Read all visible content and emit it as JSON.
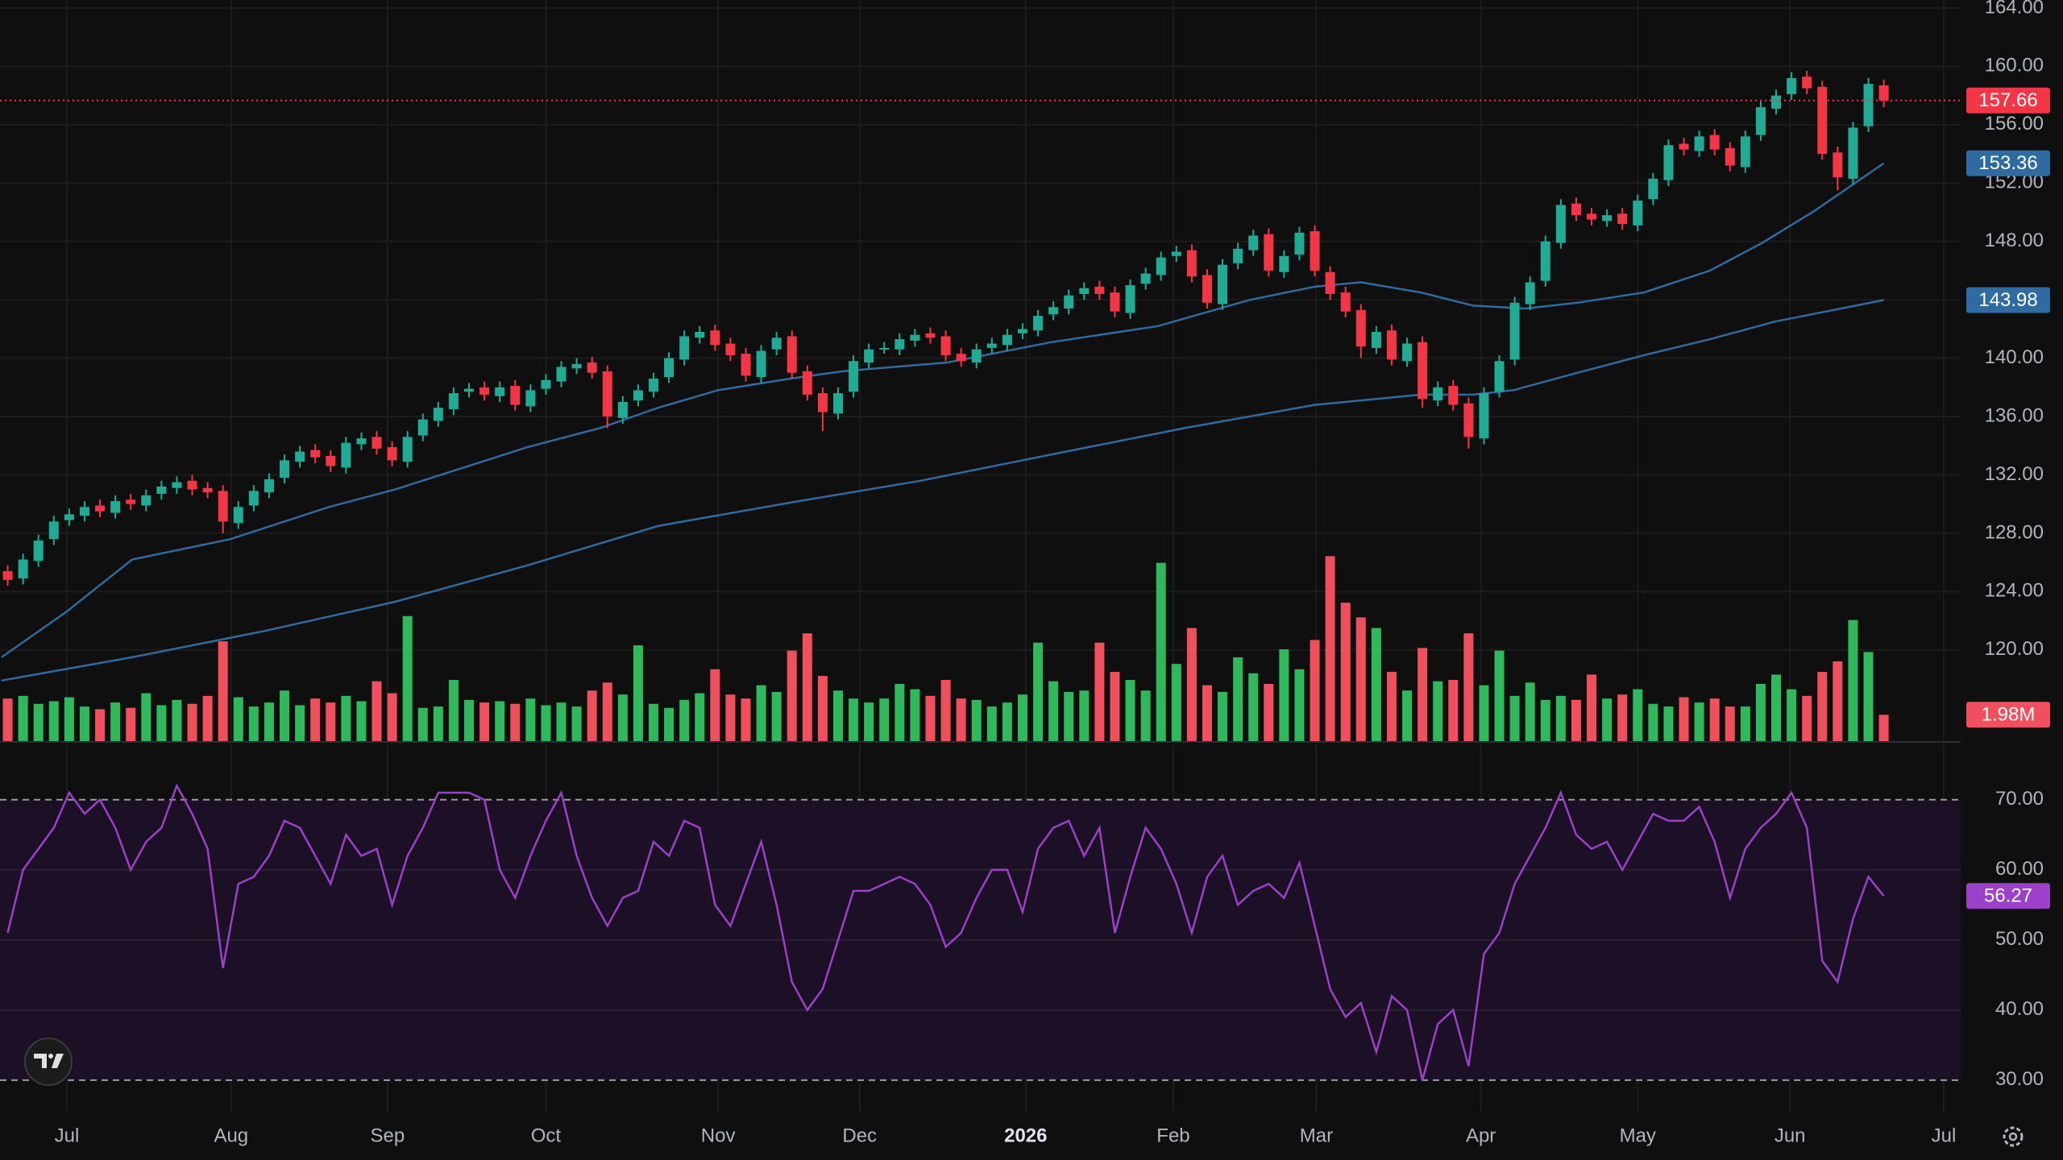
{
  "chart_data": {
    "type": "candlestick",
    "xlim": [
      -0.5,
      127
    ],
    "xticks": [
      {
        "value": 3.85,
        "label": "Jul"
      },
      {
        "value": 14.53,
        "label": "Aug"
      },
      {
        "value": 24.7,
        "label": "Sep"
      },
      {
        "value": 35.0,
        "label": "Oct"
      },
      {
        "value": 46.2,
        "label": "Nov"
      },
      {
        "value": 55.4,
        "label": "Dec"
      },
      {
        "value": 66.2,
        "label": "2026"
      },
      {
        "value": 75.8,
        "label": "Feb"
      },
      {
        "value": 85.1,
        "label": "Mar"
      },
      {
        "value": 95.8,
        "label": "Apr"
      },
      {
        "value": 106.0,
        "label": "May"
      },
      {
        "value": 115.9,
        "label": "Jun"
      },
      {
        "value": 125.9,
        "label": "Jul"
      }
    ],
    "ylim": [
      113.75,
      164.55
    ],
    "yticks": [
      {
        "value": 120,
        "label": "120.00"
      },
      {
        "value": 124,
        "label": "124.00"
      },
      {
        "value": 128,
        "label": "128.00"
      },
      {
        "value": 132,
        "label": "132.00"
      },
      {
        "value": 136,
        "label": "136.00"
      },
      {
        "value": 140,
        "label": "140.00"
      },
      {
        "value": 144,
        "label": "144.00"
      },
      {
        "value": 148,
        "label": "148.00"
      },
      {
        "value": 152,
        "label": "152.00"
      },
      {
        "value": 156,
        "label": "156.00"
      },
      {
        "value": 160,
        "label": "160.00"
      },
      {
        "value": 164,
        "label": "164.00"
      }
    ],
    "grid": true,
    "up_color": "#22ab94",
    "down_color": "#f23645",
    "open": [
      125.4,
      124.9,
      126.1,
      127.6,
      128.9,
      129.2,
      129.9,
      129.4,
      130.3,
      129.9,
      130.7,
      131.1,
      131.6,
      131.1,
      130.9,
      128.7,
      129.9,
      130.8,
      131.8,
      132.9,
      133.7,
      133.3,
      132.5,
      134.1,
      134.6,
      133.9,
      132.9,
      134.7,
      135.7,
      136.5,
      137.7,
      138.0,
      137.4,
      138.1,
      136.7,
      137.9,
      138.4,
      139.3,
      139.7,
      139.1,
      135.9,
      137.1,
      137.7,
      138.7,
      139.9,
      141.4,
      141.9,
      141.0,
      140.3,
      138.7,
      140.6,
      141.5,
      139.1,
      137.6,
      136.2,
      137.7,
      139.7,
      140.7,
      140.6,
      141.2,
      141.7,
      141.5,
      140.3,
      139.7,
      140.7,
      140.9,
      141.7,
      141.9,
      143.0,
      143.4,
      144.4,
      144.9,
      144.5,
      143.1,
      145.1,
      145.7,
      147.0,
      147.4,
      145.7,
      143.7,
      146.5,
      147.4,
      148.5,
      145.9,
      147.1,
      148.7,
      145.9,
      144.5,
      143.3,
      140.7,
      141.9,
      139.8,
      141.1,
      137.1,
      138.1,
      136.9,
      134.5,
      137.7,
      139.9,
      143.7,
      145.3,
      147.9,
      150.6,
      149.9,
      149.4,
      149.9,
      149.1,
      150.9,
      152.2,
      154.7,
      154.2,
      155.3,
      154.4,
      153.1,
      155.3,
      157.1,
      158.1,
      159.3,
      158.6,
      154.1,
      152.3,
      155.9,
      158.7
    ],
    "high": [
      125.8,
      126.6,
      127.9,
      129.2,
      129.7,
      130.2,
      130.3,
      130.6,
      130.7,
      131.0,
      131.6,
      131.9,
      132.0,
      131.5,
      131.3,
      130.2,
      131.3,
      132.1,
      133.4,
      134.0,
      134.1,
      133.7,
      134.6,
      134.9,
      135.0,
      134.3,
      135.0,
      136.2,
      137.0,
      138.0,
      138.3,
      138.4,
      138.4,
      138.5,
      138.2,
      138.9,
      139.8,
      140.0,
      140.1,
      139.5,
      137.4,
      138.2,
      139.0,
      140.4,
      141.9,
      142.2,
      142.3,
      141.4,
      140.7,
      140.9,
      141.8,
      141.9,
      139.5,
      138.0,
      138.0,
      140.2,
      141.0,
      141.1,
      141.7,
      142.0,
      142.1,
      141.9,
      140.7,
      141.0,
      141.4,
      142.0,
      142.4,
      143.3,
      143.9,
      144.7,
      145.2,
      145.3,
      144.9,
      145.4,
      146.2,
      147.3,
      147.7,
      147.8,
      146.1,
      146.8,
      147.9,
      148.8,
      148.9,
      147.4,
      149.0,
      149.1,
      146.3,
      144.9,
      143.7,
      142.2,
      142.3,
      141.4,
      141.5,
      138.4,
      138.5,
      137.3,
      138.0,
      140.2,
      144.2,
      145.6,
      148.4,
      150.9,
      151.0,
      150.3,
      150.2,
      150.3,
      151.2,
      152.7,
      155.0,
      155.1,
      155.6,
      155.7,
      154.8,
      155.6,
      157.6,
      158.4,
      159.6,
      159.7,
      159.0,
      154.5,
      156.2,
      159.2,
      159.1
    ],
    "low": [
      124.4,
      124.5,
      125.7,
      127.2,
      128.5,
      128.8,
      129.1,
      129.0,
      129.6,
      129.5,
      130.3,
      130.7,
      130.6,
      130.4,
      128.0,
      128.3,
      129.5,
      130.4,
      131.4,
      132.5,
      132.8,
      132.2,
      132.1,
      133.7,
      133.4,
      132.6,
      132.5,
      134.3,
      135.3,
      136.1,
      137.3,
      137.1,
      137.0,
      136.4,
      136.3,
      137.5,
      138.0,
      138.9,
      138.6,
      135.2,
      135.5,
      136.7,
      137.3,
      138.3,
      139.5,
      141.0,
      140.5,
      139.8,
      138.4,
      138.3,
      140.2,
      138.6,
      137.1,
      135.0,
      135.8,
      137.3,
      139.3,
      140.3,
      140.2,
      140.8,
      141.0,
      139.8,
      139.4,
      139.3,
      140.3,
      140.5,
      141.3,
      141.5,
      142.6,
      143.0,
      144.0,
      144.0,
      142.8,
      142.7,
      144.7,
      145.3,
      146.6,
      145.2,
      143.4,
      143.3,
      146.1,
      147.0,
      145.6,
      145.5,
      146.7,
      145.6,
      144.0,
      142.8,
      140.0,
      140.3,
      139.5,
      139.4,
      136.6,
      136.7,
      136.4,
      133.8,
      134.1,
      137.3,
      139.5,
      143.3,
      144.9,
      147.5,
      149.4,
      149.1,
      149.0,
      148.8,
      148.7,
      150.5,
      151.8,
      153.9,
      153.8,
      153.9,
      152.8,
      152.7,
      154.9,
      156.7,
      157.7,
      158.1,
      153.6,
      151.5,
      151.9,
      155.5,
      157.2
    ],
    "close": [
      124.8,
      126.2,
      127.5,
      128.8,
      129.3,
      129.8,
      129.5,
      130.2,
      130.0,
      130.6,
      131.2,
      131.5,
      131.0,
      130.8,
      128.8,
      129.8,
      130.9,
      131.7,
      133.0,
      133.6,
      133.2,
      132.6,
      134.2,
      134.5,
      133.8,
      133.0,
      134.6,
      135.8,
      136.6,
      137.6,
      137.9,
      137.5,
      138.0,
      136.8,
      137.8,
      138.5,
      139.4,
      139.6,
      139.0,
      136.0,
      137.0,
      137.8,
      138.6,
      140.0,
      141.5,
      141.8,
      140.9,
      140.2,
      138.8,
      140.5,
      141.4,
      139.0,
      137.5,
      136.3,
      137.6,
      139.8,
      140.6,
      140.7,
      141.3,
      141.6,
      141.4,
      140.2,
      139.8,
      140.6,
      141.0,
      141.6,
      142.0,
      142.9,
      143.5,
      144.3,
      144.8,
      144.4,
      143.2,
      145.0,
      145.8,
      146.9,
      147.3,
      145.6,
      143.8,
      146.4,
      147.5,
      148.4,
      146.0,
      147.0,
      148.6,
      146.0,
      144.4,
      143.2,
      140.8,
      141.8,
      139.9,
      141.0,
      137.2,
      138.0,
      136.8,
      134.6,
      137.6,
      139.8,
      143.8,
      145.2,
      148.0,
      150.5,
      149.8,
      149.5,
      149.8,
      149.2,
      150.8,
      152.3,
      154.6,
      154.3,
      155.2,
      154.3,
      153.2,
      155.2,
      157.2,
      158.0,
      159.2,
      158.5,
      154.0,
      152.4,
      155.8,
      158.8,
      157.66
    ],
    "moving_averages": [
      {
        "color": "#2f6aa0",
        "x": [
          -0.4,
          3.8,
          8.1,
          14.5,
          20.9,
          25.2,
          33.8,
          38.5,
          42.3,
          46.2,
          50.9,
          54.3,
          61.1,
          67.9,
          74.8,
          80.8,
          85.0,
          88.0,
          91.9,
          95.3,
          98.7,
          102.1,
          106.4,
          110.7,
          114.1,
          117.5,
          122
        ],
        "values": [
          119.5,
          122.6,
          126.2,
          127.6,
          129.8,
          131.0,
          133.9,
          135.2,
          136.6,
          137.8,
          138.6,
          139.1,
          139.7,
          141.1,
          142.2,
          144.0,
          144.9,
          145.2,
          144.5,
          143.6,
          143.4,
          143.8,
          144.5,
          146.0,
          147.9,
          150.1,
          153.36
        ]
      },
      {
        "color": "#2f6aa0",
        "x": [
          -0.4,
          8.1,
          16.7,
          25.2,
          33.8,
          42.3,
          50.9,
          59.4,
          67.9,
          76.5,
          85.0,
          91.9,
          95.3,
          97.9,
          102.1,
          106.4,
          110.7,
          114.9,
          122
        ],
        "values": [
          117.9,
          119.5,
          121.3,
          123.3,
          125.8,
          128.5,
          130.1,
          131.6,
          133.4,
          135.2,
          136.8,
          137.5,
          137.5,
          137.8,
          139.0,
          140.2,
          141.3,
          142.5,
          143.98
        ]
      }
    ],
    "volume": {
      "up_color": "#2fb85c",
      "down_color": "#f0505d",
      "ylim": [
        0,
        55.7
      ],
      "values": [
        3.2,
        3.4,
        2.8,
        3.0,
        3.3,
        2.6,
        2.4,
        2.9,
        2.5,
        3.6,
        2.7,
        3.1,
        2.8,
        3.4,
        7.5,
        3.3,
        2.6,
        2.9,
        3.8,
        2.7,
        3.2,
        2.9,
        3.4,
        3.0,
        4.5,
        3.6,
        9.4,
        2.5,
        2.6,
        4.6,
        3.1,
        2.9,
        3.0,
        2.8,
        3.2,
        2.7,
        2.9,
        2.6,
        3.8,
        4.4,
        3.5,
        7.2,
        2.8,
        2.5,
        3.1,
        3.6,
        5.4,
        3.5,
        3.2,
        4.2,
        3.7,
        6.8,
        8.1,
        4.9,
        3.8,
        3.2,
        2.9,
        3.2,
        4.3,
        3.9,
        3.4,
        4.6,
        3.2,
        3.1,
        2.6,
        2.9,
        3.5,
        7.4,
        4.5,
        3.7,
        3.8,
        7.4,
        5.2,
        4.6,
        3.8,
        13.4,
        5.8,
        8.5,
        4.2,
        3.7,
        6.3,
        5.1,
        4.3,
        6.9,
        5.4,
        7.6,
        13.9,
        10.4,
        9.3,
        8.5,
        5.2,
        3.8,
        7.0,
        4.5,
        4.6,
        8.1,
        4.2,
        6.8,
        3.4,
        4.4,
        3.1,
        3.4,
        3.1,
        5.0,
        3.2,
        3.5,
        3.9,
        2.8,
        2.6,
        3.3,
        2.9,
        3.2,
        2.6,
        2.6,
        4.3,
        5.0,
        3.9,
        3.4,
        5.2,
        6.0,
        9.1,
        6.7,
        1.98
      ],
      "value_labels": {
        "122": "1.98M"
      }
    },
    "rsi": {
      "color": "#9c3fc9",
      "band_color": "#1c1026",
      "band": [
        30,
        70
      ],
      "ylim": [
        25.5,
        77.9
      ],
      "yticks": [
        {
          "value": 30,
          "label": "30.00"
        },
        {
          "value": 40,
          "label": "40.00"
        },
        {
          "value": 50,
          "label": "50.00"
        },
        {
          "value": 60,
          "label": "60.00"
        },
        {
          "value": 70,
          "label": "70.00"
        }
      ],
      "values": [
        51,
        60,
        63,
        66,
        71,
        68,
        70,
        66,
        60,
        64,
        66,
        72,
        68,
        63,
        46,
        58,
        59,
        62,
        67,
        66,
        62,
        58,
        65,
        62,
        63,
        55,
        62,
        66,
        71,
        71,
        71,
        70,
        60,
        56,
        62,
        67,
        71,
        62,
        56,
        52,
        56,
        57,
        64,
        62,
        67,
        66,
        55,
        52,
        58,
        64,
        55,
        44,
        40,
        43,
        50,
        57,
        57,
        58,
        59,
        58,
        55,
        49,
        51,
        56,
        60,
        60,
        54,
        63,
        66,
        67,
        62,
        66,
        51,
        59,
        66,
        63,
        58,
        51,
        59,
        62,
        55,
        57,
        58,
        56,
        61,
        52,
        43,
        39,
        41,
        34,
        42,
        40,
        30,
        38,
        40,
        32,
        48,
        51,
        58,
        62,
        66,
        71,
        65,
        63,
        64,
        60,
        64,
        68,
        67,
        67,
        69,
        64,
        56,
        63,
        66,
        68,
        71,
        66,
        47,
        44,
        53,
        59,
        56.27
      ]
    }
  }
}
